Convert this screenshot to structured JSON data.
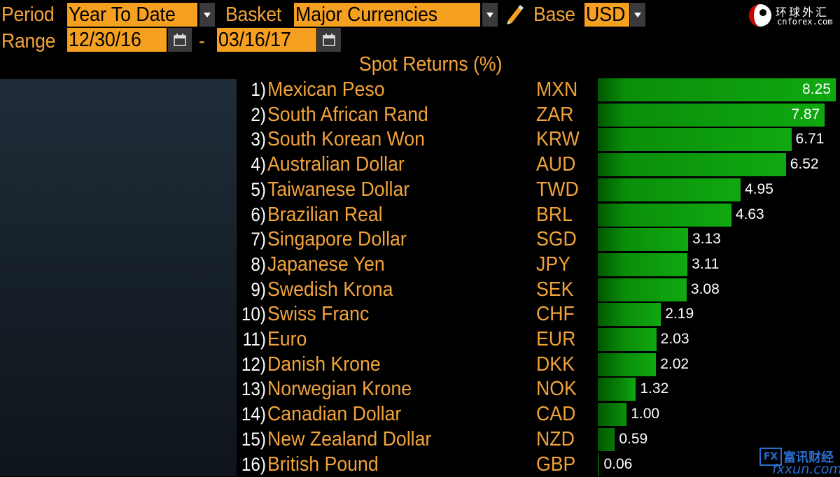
{
  "header": {
    "period_label": "Period",
    "period_value": "Year To Date",
    "basket_label": "Basket",
    "basket_value": "Major Currencies",
    "base_label": "Base",
    "base_value": "USD",
    "range_label": "Range",
    "range_start": "12/30/16",
    "range_sep": "-",
    "range_end": "03/16/17"
  },
  "logo": {
    "cn": "环球外汇",
    "en": "cnforex.com"
  },
  "watermark": {
    "box": "FX",
    "cn": "富讯财经",
    "en": "fxxun.com"
  },
  "icons": [
    "dropdown-arrow-icon",
    "pencil-icon",
    "calendar-icon",
    "globe-logo-icon"
  ],
  "colors": {
    "accent": "#f5a020",
    "bar": "#10a810",
    "text": "#f2a33a"
  },
  "chart_data": {
    "type": "bar",
    "title": "Spot Returns (%)",
    "max": 8.25,
    "rows": [
      {
        "rank": "1)",
        "name": "Mexican Peso",
        "code": "MXN",
        "value": 8.25,
        "label": "8.25"
      },
      {
        "rank": "2)",
        "name": "South African Rand",
        "code": "ZAR",
        "value": 7.87,
        "label": "7.87"
      },
      {
        "rank": "3)",
        "name": "South Korean Won",
        "code": "KRW",
        "value": 6.71,
        "label": "6.71"
      },
      {
        "rank": "4)",
        "name": "Australian Dollar",
        "code": "AUD",
        "value": 6.52,
        "label": "6.52"
      },
      {
        "rank": "5)",
        "name": "Taiwanese Dollar",
        "code": "TWD",
        "value": 4.95,
        "label": "4.95"
      },
      {
        "rank": "6)",
        "name": "Brazilian Real",
        "code": "BRL",
        "value": 4.63,
        "label": "4.63"
      },
      {
        "rank": "7)",
        "name": "Singapore Dollar",
        "code": "SGD",
        "value": 3.13,
        "label": "3.13"
      },
      {
        "rank": "8)",
        "name": "Japanese Yen",
        "code": "JPY",
        "value": 3.11,
        "label": "3.11"
      },
      {
        "rank": "9)",
        "name": "Swedish Krona",
        "code": "SEK",
        "value": 3.08,
        "label": "3.08"
      },
      {
        "rank": "10)",
        "name": "Swiss Franc",
        "code": "CHF",
        "value": 2.19,
        "label": "2.19"
      },
      {
        "rank": "11)",
        "name": "Euro",
        "code": "EUR",
        "value": 2.03,
        "label": "2.03"
      },
      {
        "rank": "12)",
        "name": "Danish Krone",
        "code": "DKK",
        "value": 2.02,
        "label": "2.02"
      },
      {
        "rank": "13)",
        "name": "Norwegian Krone",
        "code": "NOK",
        "value": 1.32,
        "label": "1.32"
      },
      {
        "rank": "14)",
        "name": "Canadian Dollar",
        "code": "CAD",
        "value": 1.0,
        "label": "1.00"
      },
      {
        "rank": "15)",
        "name": "New Zealand Dollar",
        "code": "NZD",
        "value": 0.59,
        "label": "0.59"
      },
      {
        "rank": "16)",
        "name": "British Pound",
        "code": "GBP",
        "value": 0.06,
        "label": "0.06"
      }
    ]
  }
}
